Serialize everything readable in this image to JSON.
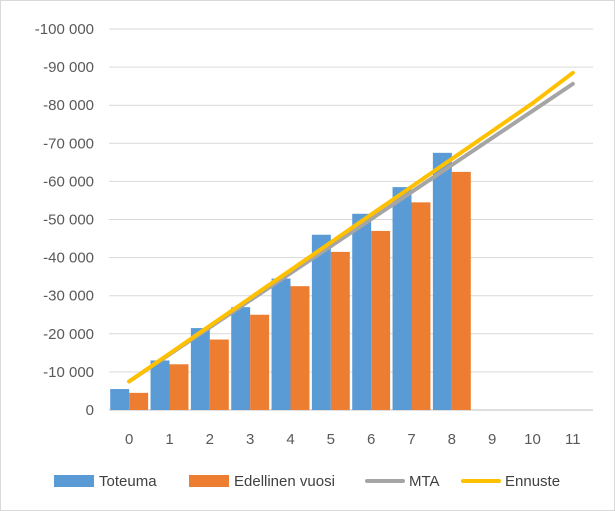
{
  "chart_data": {
    "type": "bar",
    "title": "",
    "xlabel": "",
    "ylabel": "",
    "categories": [
      "0",
      "1",
      "2",
      "3",
      "4",
      "5",
      "6",
      "7",
      "8",
      "9",
      "10",
      "11"
    ],
    "ylim": [
      0,
      100000
    ],
    "ytick_values": [
      0,
      10000,
      20000,
      30000,
      40000,
      50000,
      60000,
      70000,
      80000,
      90000,
      100000
    ],
    "ytick_labels": [
      "0",
      "-10 000",
      "-20 000",
      "-30 000",
      "-40 000",
      "-50 000",
      "-60 000",
      "-70 000",
      "-80 000",
      "-90 000",
      "-100 000"
    ],
    "grid": true,
    "legend_position": "bottom",
    "bar_series": [
      {
        "name": "Toteuma",
        "color": "#5B9BD5",
        "values": [
          5500,
          13000,
          21500,
          27000,
          34500,
          46000,
          51500,
          58500,
          67500,
          null,
          null,
          null
        ]
      },
      {
        "name": "Edellinen vuosi",
        "color": "#ED7D31",
        "values": [
          4500,
          12000,
          18500,
          25000,
          32500,
          41500,
          47000,
          54500,
          62500,
          null,
          null,
          null
        ]
      }
    ],
    "line_series": [
      {
        "name": "MTA",
        "color": "#A5A5A5",
        "values": [
          7500,
          14600,
          21700,
          28800,
          35900,
          43000,
          50100,
          57200,
          64300,
          71400,
          78500,
          85600
        ]
      },
      {
        "name": "Ennuste",
        "color": "#FFC000",
        "values": [
          7500,
          14800,
          22100,
          29400,
          36700,
          44000,
          51300,
          58600,
          65900,
          73200,
          80500,
          88500
        ]
      }
    ]
  }
}
